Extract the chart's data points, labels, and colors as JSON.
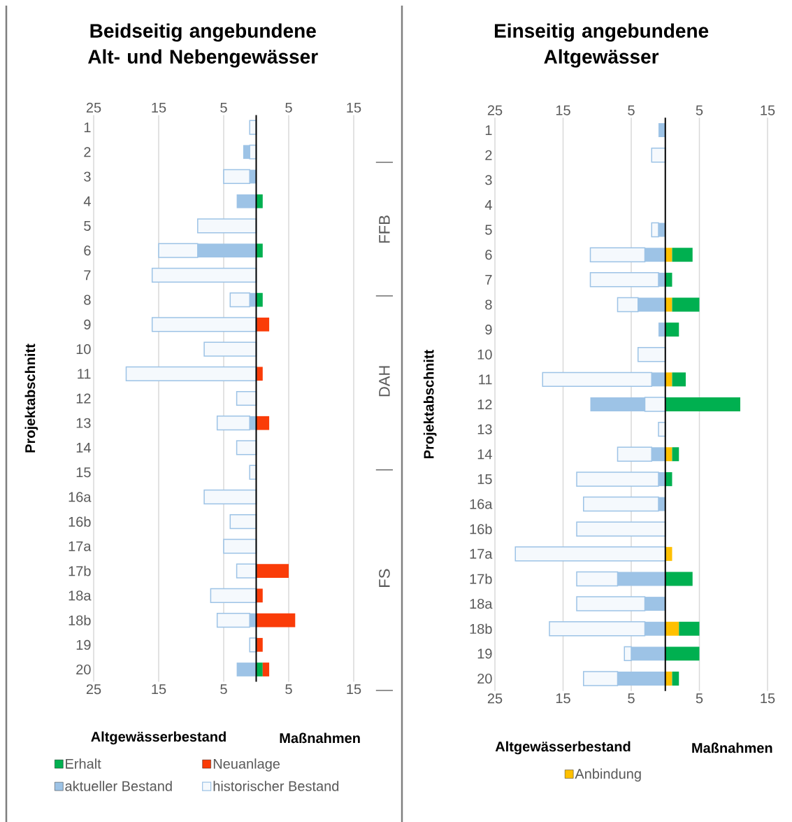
{
  "chart_data": [
    {
      "type": "bar",
      "orientation": "horizontal",
      "stacked": true,
      "title": "Beidseitig angebundene Alt- und Nebengewässer",
      "xlabel": "Altgewässerbestand",
      "ylabel": "Projektabschnitt",
      "annotations": [
        "Maßnahmen",
        "FFB",
        "DAH",
        "FS"
      ],
      "categories": [
        "1",
        "2",
        "3",
        "4",
        "5",
        "6",
        "7",
        "8",
        "9",
        "10",
        "11",
        "12",
        "13",
        "14",
        "15",
        "16a",
        "16b",
        "17a",
        "17b",
        "18a",
        "18b",
        "19",
        "20"
      ],
      "xlim": [
        -25,
        15
      ],
      "xticks": [
        {
          "value": -25,
          "label": "25"
        },
        {
          "value": -15,
          "label": "15"
        },
        {
          "value": -5,
          "label": "5"
        },
        5,
        15
      ],
      "x2lim": [
        -25,
        15
      ],
      "x2ticks": [
        {
          "value": -25,
          "label": "25"
        },
        {
          "value": -15,
          "label": "15"
        },
        {
          "value": -5,
          "label": "5"
        },
        5,
        15
      ],
      "grid": "x",
      "legend": "bottom",
      "series": [
        {
          "name": "Erhalt",
          "color": "#00b050",
          "values": [
            null,
            null,
            null,
            1,
            null,
            1,
            null,
            1,
            null,
            null,
            null,
            null,
            null,
            null,
            null,
            null,
            null,
            null,
            null,
            null,
            null,
            null,
            1
          ]
        },
        {
          "name": "Neuanlage",
          "color": "#fa3c08",
          "values": [
            null,
            null,
            null,
            null,
            null,
            null,
            null,
            null,
            2,
            null,
            1,
            null,
            2,
            null,
            null,
            null,
            null,
            null,
            5,
            1,
            6,
            1,
            1
          ]
        },
        {
          "color": "#f5f9fd",
          "values": [
            null,
            -1,
            null,
            null,
            null,
            null,
            null,
            null,
            null,
            null,
            null,
            null,
            null,
            null,
            null,
            null,
            null,
            null,
            null,
            null,
            null,
            null,
            null
          ]
        },
        {
          "name": "aktueller Bestand",
          "color": "#9dc3e6",
          "values": [
            null,
            -1,
            -1,
            -3,
            null,
            -9,
            null,
            -1,
            null,
            null,
            null,
            null,
            -1,
            null,
            null,
            null,
            null,
            null,
            null,
            null,
            -1,
            null,
            -3
          ]
        },
        {
          "name": "historischer Bestand",
          "color": "#f5f9fd",
          "values": [
            -1,
            null,
            -4,
            null,
            -9,
            -6,
            -16,
            -3,
            -16,
            -8,
            -20,
            -3,
            -5,
            -3,
            -1,
            -8,
            -4,
            -5,
            -3,
            -7,
            -5,
            -1,
            null
          ]
        }
      ]
    },
    {
      "type": "bar",
      "orientation": "horizontal",
      "stacked": true,
      "title": "Einseitig angebundene Altgewässer",
      "xlabel": "Altgewässerbestand",
      "ylabel": "Projektabschnitt",
      "annotations": [
        "Maßnahmen"
      ],
      "categories": [
        "1",
        "2",
        "3",
        "4",
        "5",
        "6",
        "7",
        "8",
        "9",
        "10",
        "11",
        "12",
        "13",
        "14",
        "15",
        "16a",
        "16b",
        "17a",
        "17b",
        "18a",
        "18b",
        "19",
        "20"
      ],
      "xlim": [
        -25,
        15
      ],
      "xticks": [
        {
          "value": -25,
          "label": "25"
        },
        {
          "value": -15,
          "label": "15"
        },
        {
          "value": -5,
          "label": "5"
        },
        5,
        15
      ],
      "x2lim": [
        -25,
        15
      ],
      "x2ticks": [
        {
          "value": -25,
          "label": "25"
        },
        {
          "value": -15,
          "label": "15"
        },
        {
          "value": -5,
          "label": "5"
        },
        5,
        15
      ],
      "grid": "x",
      "legend": "bottom",
      "series": [
        {
          "name": "Anbindung",
          "color": "#ffc000",
          "values": [
            null,
            null,
            null,
            null,
            null,
            1,
            null,
            1,
            null,
            null,
            1,
            null,
            null,
            1,
            null,
            null,
            null,
            1,
            null,
            null,
            2,
            null,
            1
          ]
        },
        {
          "color": "#00b050",
          "values": [
            null,
            null,
            null,
            null,
            null,
            3,
            1,
            4,
            2,
            null,
            2,
            11,
            null,
            1,
            1,
            null,
            null,
            null,
            4,
            null,
            3,
            5,
            1
          ]
        },
        {
          "color": "#f5f9fd",
          "values": [
            null,
            null,
            null,
            null,
            null,
            null,
            null,
            null,
            null,
            null,
            null,
            -3,
            null,
            null,
            null,
            null,
            null,
            null,
            null,
            null,
            null,
            null,
            null
          ]
        },
        {
          "color": "#9dc3e6",
          "values": [
            -1,
            null,
            null,
            null,
            -1,
            -3,
            -1,
            -4,
            -1,
            null,
            -2,
            -8,
            null,
            -2,
            -1,
            -1,
            null,
            null,
            -7,
            -3,
            -3,
            -5,
            -7
          ]
        },
        {
          "color": "#f5f9fd",
          "values": [
            null,
            -2,
            null,
            null,
            -1,
            -8,
            -10,
            -3,
            null,
            -4,
            -16,
            null,
            -1,
            -5,
            -12,
            -11,
            -13,
            -22,
            -6,
            -10,
            -14,
            -1,
            -5
          ]
        }
      ]
    }
  ]
}
